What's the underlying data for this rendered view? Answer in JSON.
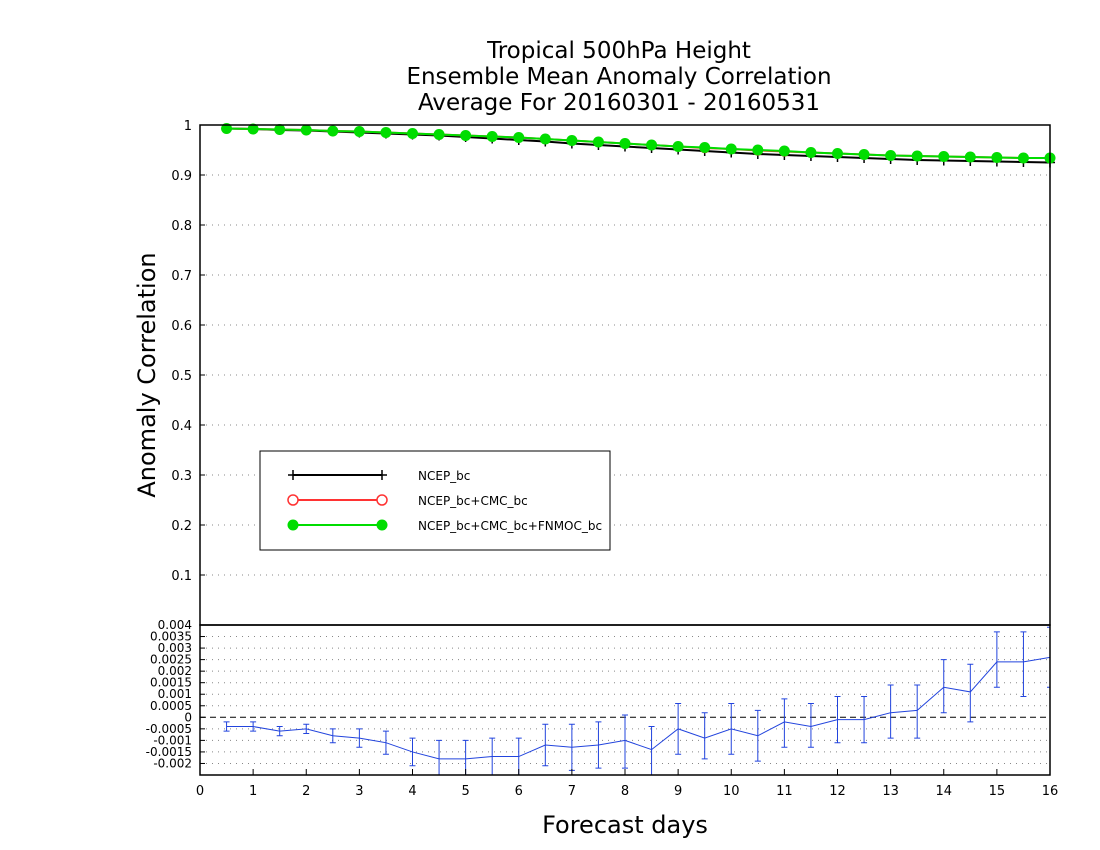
{
  "chart_data": [
    {
      "type": "line",
      "title_lines": [
        "Tropical 500hPa Height",
        "Ensemble Mean Anomaly Correlation",
        "Average For 20160301 - 20160531"
      ],
      "xlabel": "Forecast days",
      "ylabel": "Anomaly Correlation",
      "xlim": [
        0,
        16
      ],
      "ylim": [
        0,
        1
      ],
      "x_ticks": [
        "0",
        "1",
        "2",
        "3",
        "4",
        "5",
        "6",
        "7",
        "8",
        "9",
        "10",
        "11",
        "12",
        "13",
        "14",
        "15",
        "16"
      ],
      "y_ticks": [
        "0.1",
        "0.2",
        "0.3",
        "0.4",
        "0.5",
        "0.6",
        "0.7",
        "0.8",
        "0.9",
        "1"
      ],
      "grid": true,
      "legend_position": "lower-left",
      "x": [
        0.5,
        1,
        1.5,
        2,
        2.5,
        3,
        3.5,
        4,
        4.5,
        5,
        5.5,
        6,
        6.5,
        7,
        7.5,
        8,
        8.5,
        9,
        9.5,
        10,
        10.5,
        11,
        11.5,
        12,
        12.5,
        13,
        13.5,
        14,
        14.5,
        15,
        15.5,
        16
      ],
      "series": [
        {
          "name": "NCEP_bc",
          "color": "#000000",
          "marker": "plus",
          "values": [
            0.993,
            0.992,
            0.99,
            0.989,
            0.987,
            0.985,
            0.983,
            0.981,
            0.979,
            0.976,
            0.973,
            0.97,
            0.967,
            0.963,
            0.96,
            0.957,
            0.954,
            0.951,
            0.948,
            0.945,
            0.942,
            0.94,
            0.938,
            0.936,
            0.934,
            0.932,
            0.93,
            0.929,
            0.928,
            0.927,
            0.926,
            0.925
          ]
        },
        {
          "name": "NCEP_bc+CMC_bc",
          "color": "#ff3333",
          "marker": "open-circle",
          "values": [
            0.993,
            0.992,
            0.991,
            0.99,
            0.988,
            0.987,
            0.985,
            0.983,
            0.981,
            0.979,
            0.977,
            0.975,
            0.972,
            0.969,
            0.966,
            0.963,
            0.96,
            0.957,
            0.954,
            0.952,
            0.949,
            0.947,
            0.945,
            0.943,
            0.941,
            0.939,
            0.938,
            0.937,
            0.936,
            0.935,
            0.934,
            0.934
          ]
        },
        {
          "name": "NCEP_bc+CMC_bc+FNMOC_bc",
          "color": "#00dd00",
          "marker": "filled-circle",
          "values": [
            0.993,
            0.992,
            0.991,
            0.99,
            0.988,
            0.987,
            0.985,
            0.983,
            0.981,
            0.979,
            0.977,
            0.975,
            0.972,
            0.969,
            0.966,
            0.963,
            0.96,
            0.957,
            0.955,
            0.952,
            0.95,
            0.948,
            0.945,
            0.943,
            0.941,
            0.939,
            0.938,
            0.937,
            0.936,
            0.935,
            0.934,
            0.934
          ]
        }
      ]
    },
    {
      "type": "line",
      "xlabel": "",
      "ylabel": "",
      "xlim": [
        0,
        16
      ],
      "ylim": [
        -0.0025,
        0.004
      ],
      "y_ticks": [
        "-0.002",
        "-0.0015",
        "-0.001",
        "-0.0005",
        "0",
        "0.0005",
        "0.001",
        "0.0015",
        "0.002",
        "0.0025",
        "0.003",
        "0.0035",
        "0.004"
      ],
      "grid": true,
      "zero_line": true,
      "x": [
        0.5,
        1,
        1.5,
        2,
        2.5,
        3,
        3.5,
        4,
        4.5,
        5,
        5.5,
        6,
        6.5,
        7,
        7.5,
        8,
        8.5,
        9,
        9.5,
        10,
        10.5,
        11,
        11.5,
        12,
        12.5,
        13,
        13.5,
        14,
        14.5,
        15,
        15.5,
        16
      ],
      "series": [
        {
          "name": "",
          "color": "#2244dd",
          "marker": "errorbar",
          "values": [
            -0.0004,
            -0.0004,
            -0.0006,
            -0.0005,
            -0.0008,
            -0.0009,
            -0.0011,
            -0.0015,
            -0.0018,
            -0.0018,
            -0.0017,
            -0.0017,
            -0.0012,
            -0.0013,
            -0.0012,
            -0.001,
            -0.0014,
            -0.0005,
            -0.0009,
            -0.0005,
            -0.0008,
            -0.0002,
            -0.0004,
            -0.0001,
            -0.0001,
            0.0002,
            0.0003,
            0.0013,
            0.0011,
            0.0024,
            0.0024,
            0.0026
          ],
          "err_low": [
            -0.0006,
            -0.0006,
            -0.0008,
            -0.0007,
            -0.0011,
            -0.0013,
            -0.0016,
            -0.0021,
            -0.0026,
            -0.0026,
            -0.0025,
            -0.0025,
            -0.0021,
            -0.0023,
            -0.0022,
            -0.0022,
            -0.0027,
            -0.0016,
            -0.0018,
            -0.0016,
            -0.0019,
            -0.0013,
            -0.0013,
            -0.0011,
            -0.0011,
            -0.0009,
            -0.0009,
            0.0002,
            -0.0002,
            0.0013,
            0.0009,
            0.0013
          ],
          "err_high": [
            -0.0002,
            -0.0002,
            -0.0004,
            -0.0003,
            -0.0005,
            -0.0005,
            -0.0006,
            -0.0009,
            -0.001,
            -0.001,
            -0.0009,
            -0.0009,
            -0.0003,
            -0.0003,
            -0.0002,
            0.0001,
            -0.0004,
            0.0006,
            0.0002,
            0.0006,
            0.0003,
            0.0008,
            0.0006,
            0.0009,
            0.0009,
            0.0014,
            0.0014,
            0.0025,
            0.0023,
            0.0037,
            0.0037,
            0.0039
          ]
        }
      ]
    }
  ]
}
